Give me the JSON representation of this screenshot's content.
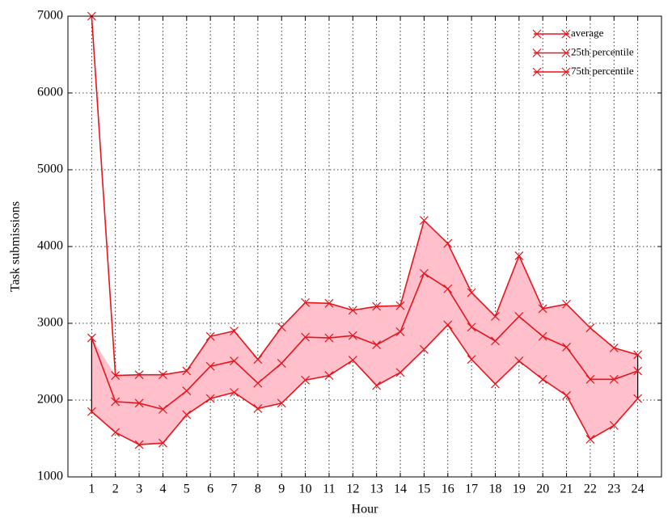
{
  "chart_data": {
    "type": "line",
    "xlabel": "Hour",
    "ylabel": "Task submissions",
    "x": [
      1,
      2,
      3,
      4,
      5,
      6,
      7,
      8,
      9,
      10,
      11,
      12,
      13,
      14,
      15,
      16,
      17,
      18,
      19,
      20,
      21,
      22,
      23,
      24
    ],
    "series": [
      {
        "name": "average",
        "color": "#e8141c",
        "values": [
          2810,
          1980,
          1960,
          1880,
          2120,
          2440,
          2510,
          2220,
          2480,
          2820,
          2810,
          2840,
          2720,
          2890,
          3650,
          3450,
          2950,
          2770,
          3090,
          2830,
          2690,
          2270,
          2270,
          2380
        ]
      },
      {
        "name": "25th percentile",
        "color": "#e8141c",
        "values": [
          1850,
          1580,
          1420,
          1440,
          1810,
          2020,
          2100,
          1890,
          1960,
          2260,
          2320,
          2520,
          2190,
          2360,
          2660,
          2980,
          2530,
          2210,
          2510,
          2270,
          2060,
          1490,
          1670,
          2020
        ]
      },
      {
        "name": "75th percentile",
        "color": "#e8141c",
        "values": [
          7000,
          2320,
          2330,
          2330,
          2380,
          2830,
          2900,
          2530,
          2950,
          3270,
          3260,
          3170,
          3220,
          3230,
          4340,
          4040,
          3400,
          3090,
          3880,
          3190,
          3250,
          2940,
          2680,
          2590
        ]
      }
    ],
    "fill_color": "#ffc0cb",
    "xlim": [
      0,
      25
    ],
    "xticks": [
      1,
      2,
      3,
      4,
      5,
      6,
      7,
      8,
      9,
      10,
      11,
      12,
      13,
      14,
      15,
      16,
      17,
      18,
      19,
      20,
      21,
      22,
      23,
      24
    ],
    "ylim": [
      1000,
      7000
    ],
    "yticks": [
      1000,
      2000,
      3000,
      4000,
      5000,
      6000,
      7000
    ],
    "grid": true,
    "legend": "upper right"
  }
}
